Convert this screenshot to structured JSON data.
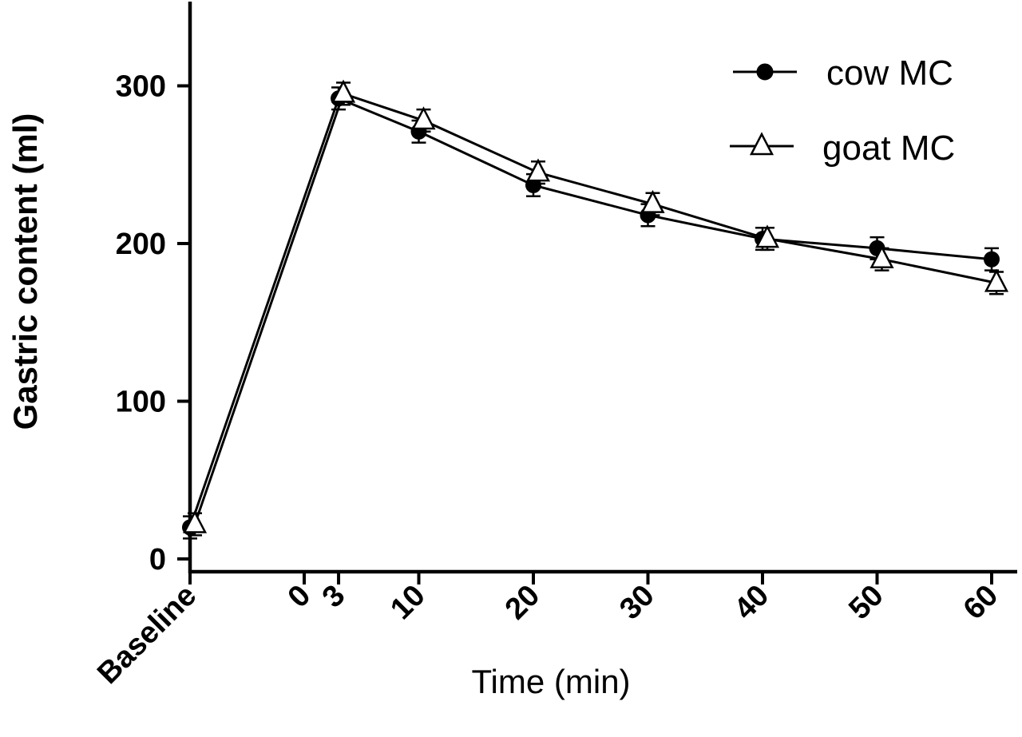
{
  "chart_data": {
    "type": "line",
    "title": "",
    "xlabel": "Time (min)",
    "ylabel": "Gastric content (ml)",
    "ylim": [
      0,
      350
    ],
    "yticks": [
      0,
      100,
      200,
      300
    ],
    "x_tick_labels": [
      "Baseline",
      "0",
      "3",
      "10",
      "20",
      "30",
      "40",
      "50",
      "60"
    ],
    "x_values": [
      -20,
      0,
      3,
      10,
      20,
      30,
      40,
      50,
      60
    ],
    "grid": false,
    "legend_position": "top-right",
    "series": [
      {
        "name": "cow MC",
        "marker": "filled-circle",
        "x": [
          "Baseline",
          3,
          10,
          20,
          30,
          40,
          50,
          60
        ],
        "values": [
          20,
          292,
          271,
          237,
          218,
          203,
          197,
          190
        ],
        "errors": [
          7,
          7,
          7,
          7,
          7,
          7,
          7,
          7
        ]
      },
      {
        "name": "goat MC",
        "marker": "open-triangle",
        "x": [
          "Baseline",
          3,
          10,
          20,
          30,
          40,
          50,
          60
        ],
        "values": [
          22,
          295,
          278,
          245,
          225,
          203,
          190,
          175
        ],
        "errors": [
          7,
          7,
          7,
          7,
          7,
          7,
          7,
          7
        ]
      }
    ]
  }
}
